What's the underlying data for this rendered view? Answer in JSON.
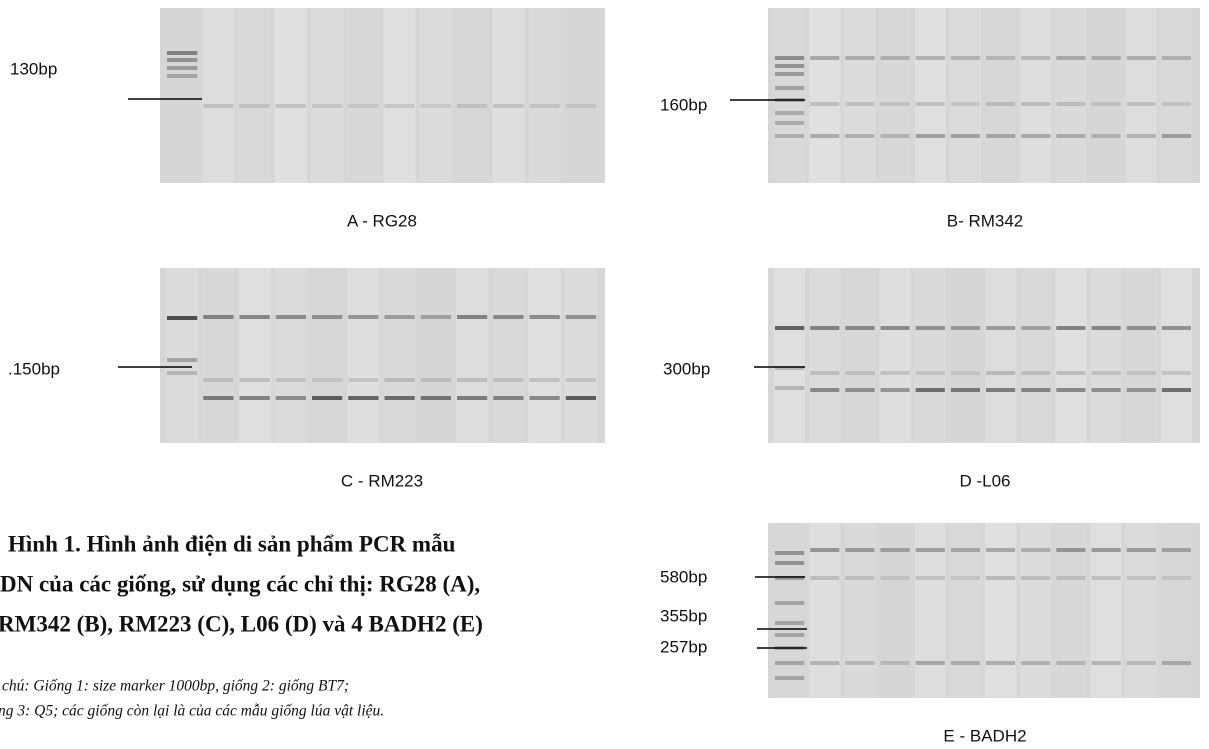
{
  "panels": [
    {
      "marker_labels": [
        "130bp"
      ],
      "caption": "A - RG28"
    },
    {
      "marker_labels": [
        "160bp"
      ],
      "caption": "B- RM342"
    },
    {
      "marker_labels": [
        ".150bp"
      ],
      "caption": "C - RM223"
    },
    {
      "marker_labels": [
        "300bp"
      ],
      "caption": "D -L06"
    },
    {
      "marker_labels": [
        "580bp",
        "355bp",
        "257bp"
      ],
      "caption": "E - BADH2"
    }
  ],
  "figure_caption": {
    "lines": [
      "Hình 1. Hình ảnh điện di sản phẩm PCR mẫu",
      "DN của các giống,  sử dụng các chỉ thị: RG28 (A),",
      "RM342 (B), RM223 (C), L06 (D) và 4 BADH2 (E)"
    ]
  },
  "note": {
    "lines": [
      "chú: Giống 1: size marker 1000bp, giống 2: giống BT7;",
      "ng 3: Q5; các giống còn lại là của các mẫu giống lúa vật liệu."
    ]
  }
}
